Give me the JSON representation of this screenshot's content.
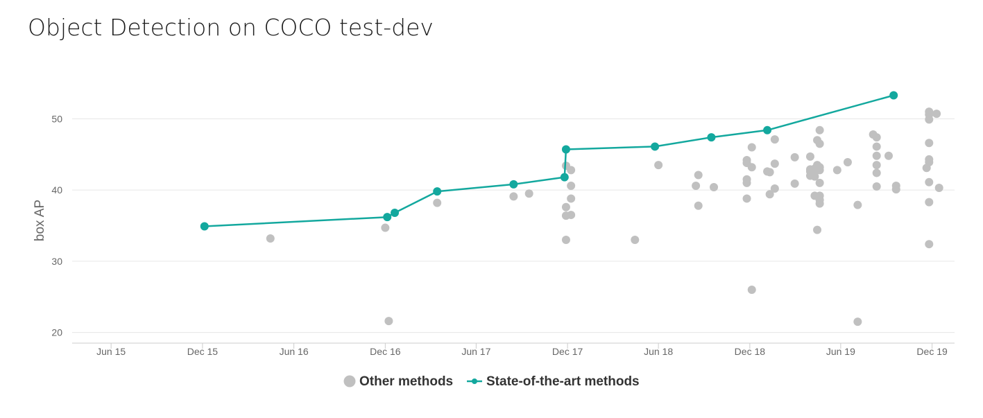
{
  "header": {
    "title": "Object Detection on COCO test-dev"
  },
  "colors": {
    "sota": "#13a89e",
    "other": "#c0c0c0",
    "grid": "#e6e6e6",
    "axis": "#cccccc"
  },
  "chart_data": {
    "type": "scatter",
    "title": "Object Detection on COCO test-dev",
    "xlabel": "",
    "ylabel": "box AP",
    "ylim": [
      18.5,
      55
    ],
    "xlim": [
      "2015-03-15",
      "2020-01-15"
    ],
    "yticks": [
      20,
      30,
      40,
      50
    ],
    "xticks": [
      {
        "label": "Jun 15",
        "date": "2015-06-01"
      },
      {
        "label": "Dec 15",
        "date": "2015-12-01"
      },
      {
        "label": "Jun 16",
        "date": "2016-06-01"
      },
      {
        "label": "Dec 16",
        "date": "2016-12-01"
      },
      {
        "label": "Jun 17",
        "date": "2017-06-01"
      },
      {
        "label": "Dec 17",
        "date": "2017-12-01"
      },
      {
        "label": "Jun 18",
        "date": "2018-06-01"
      },
      {
        "label": "Dec 18",
        "date": "2018-12-01"
      },
      {
        "label": "Jun 19",
        "date": "2019-06-01"
      },
      {
        "label": "Dec 19",
        "date": "2019-12-01"
      }
    ],
    "grid": true,
    "legend_position": "bottom-center",
    "series": [
      {
        "name": "Other methods",
        "style": "points",
        "points": [
          [
            "2016-04-15",
            33.2
          ],
          [
            "2016-12-01",
            34.7
          ],
          [
            "2016-12-08",
            21.6
          ],
          [
            "2017-03-15",
            38.2
          ],
          [
            "2017-08-15",
            39.1
          ],
          [
            "2017-09-15",
            39.5
          ],
          [
            "2017-11-28",
            43.4
          ],
          [
            "2017-11-28",
            37.6
          ],
          [
            "2017-11-28",
            36.4
          ],
          [
            "2017-11-28",
            33.0
          ],
          [
            "2017-12-08",
            42.8
          ],
          [
            "2017-12-08",
            40.6
          ],
          [
            "2017-12-08",
            38.8
          ],
          [
            "2017-12-08",
            36.5
          ],
          [
            "2018-04-15",
            33.0
          ],
          [
            "2018-06-01",
            43.5
          ],
          [
            "2018-08-15",
            40.6
          ],
          [
            "2018-08-20",
            42.1
          ],
          [
            "2018-08-20",
            37.8
          ],
          [
            "2018-09-20",
            40.4
          ],
          [
            "2018-11-25",
            44.2
          ],
          [
            "2018-11-25",
            43.8
          ],
          [
            "2018-11-25",
            41.5
          ],
          [
            "2018-11-25",
            41.0
          ],
          [
            "2018-11-25",
            38.8
          ],
          [
            "2018-12-05",
            46.0
          ],
          [
            "2018-12-05",
            43.2
          ],
          [
            "2018-12-05",
            26.0
          ],
          [
            "2019-01-05",
            42.6
          ],
          [
            "2019-01-10",
            42.5
          ],
          [
            "2019-01-10",
            39.4
          ],
          [
            "2019-01-20",
            47.1
          ],
          [
            "2019-01-20",
            43.7
          ],
          [
            "2019-01-20",
            40.2
          ],
          [
            "2019-03-01",
            44.6
          ],
          [
            "2019-03-01",
            40.9
          ],
          [
            "2019-04-01",
            44.7
          ],
          [
            "2019-04-01",
            42.9
          ],
          [
            "2019-04-01",
            42.6
          ],
          [
            "2019-04-01",
            42.0
          ],
          [
            "2019-04-10",
            43.0
          ],
          [
            "2019-04-10",
            42.5
          ],
          [
            "2019-04-10",
            41.9
          ],
          [
            "2019-04-10",
            39.2
          ],
          [
            "2019-04-15",
            47.0
          ],
          [
            "2019-04-15",
            43.5
          ],
          [
            "2019-04-15",
            42.9
          ],
          [
            "2019-04-15",
            34.4
          ],
          [
            "2019-04-20",
            48.4
          ],
          [
            "2019-04-20",
            46.5
          ],
          [
            "2019-04-20",
            43.2
          ],
          [
            "2019-04-20",
            42.8
          ],
          [
            "2019-04-20",
            41.0
          ],
          [
            "2019-04-20",
            39.2
          ],
          [
            "2019-04-20",
            38.6
          ],
          [
            "2019-04-20",
            38.1
          ],
          [
            "2019-05-25",
            42.8
          ],
          [
            "2019-06-15",
            43.9
          ],
          [
            "2019-07-05",
            37.9
          ],
          [
            "2019-07-05",
            21.5
          ],
          [
            "2019-08-05",
            47.8
          ],
          [
            "2019-08-12",
            47.4
          ],
          [
            "2019-08-12",
            46.1
          ],
          [
            "2019-08-12",
            44.8
          ],
          [
            "2019-08-12",
            43.5
          ],
          [
            "2019-08-12",
            42.4
          ],
          [
            "2019-08-12",
            40.5
          ],
          [
            "2019-09-05",
            44.8
          ],
          [
            "2019-09-20",
            40.6
          ],
          [
            "2019-09-20",
            40.1
          ],
          [
            "2019-11-20",
            43.1
          ],
          [
            "2019-11-25",
            51.0
          ],
          [
            "2019-11-25",
            50.6
          ],
          [
            "2019-11-25",
            49.9
          ],
          [
            "2019-11-25",
            46.6
          ],
          [
            "2019-11-25",
            44.3
          ],
          [
            "2019-11-25",
            43.9
          ],
          [
            "2019-11-25",
            41.1
          ],
          [
            "2019-11-25",
            38.3
          ],
          [
            "2019-11-25",
            32.4
          ],
          [
            "2019-12-10",
            50.7
          ],
          [
            "2019-12-15",
            40.3
          ]
        ]
      },
      {
        "name": "State-of-the-art methods",
        "style": "line",
        "points": [
          [
            "2015-12-05",
            34.9
          ],
          [
            "2016-12-05",
            36.2
          ],
          [
            "2016-12-20",
            36.8
          ],
          [
            "2017-03-15",
            39.8
          ],
          [
            "2017-08-15",
            40.8
          ],
          [
            "2017-11-25",
            41.8
          ],
          [
            "2017-11-28",
            45.7
          ],
          [
            "2018-05-25",
            46.1
          ],
          [
            "2018-09-15",
            47.4
          ],
          [
            "2019-01-05",
            48.4
          ],
          [
            "2019-09-15",
            53.3
          ]
        ]
      }
    ]
  }
}
